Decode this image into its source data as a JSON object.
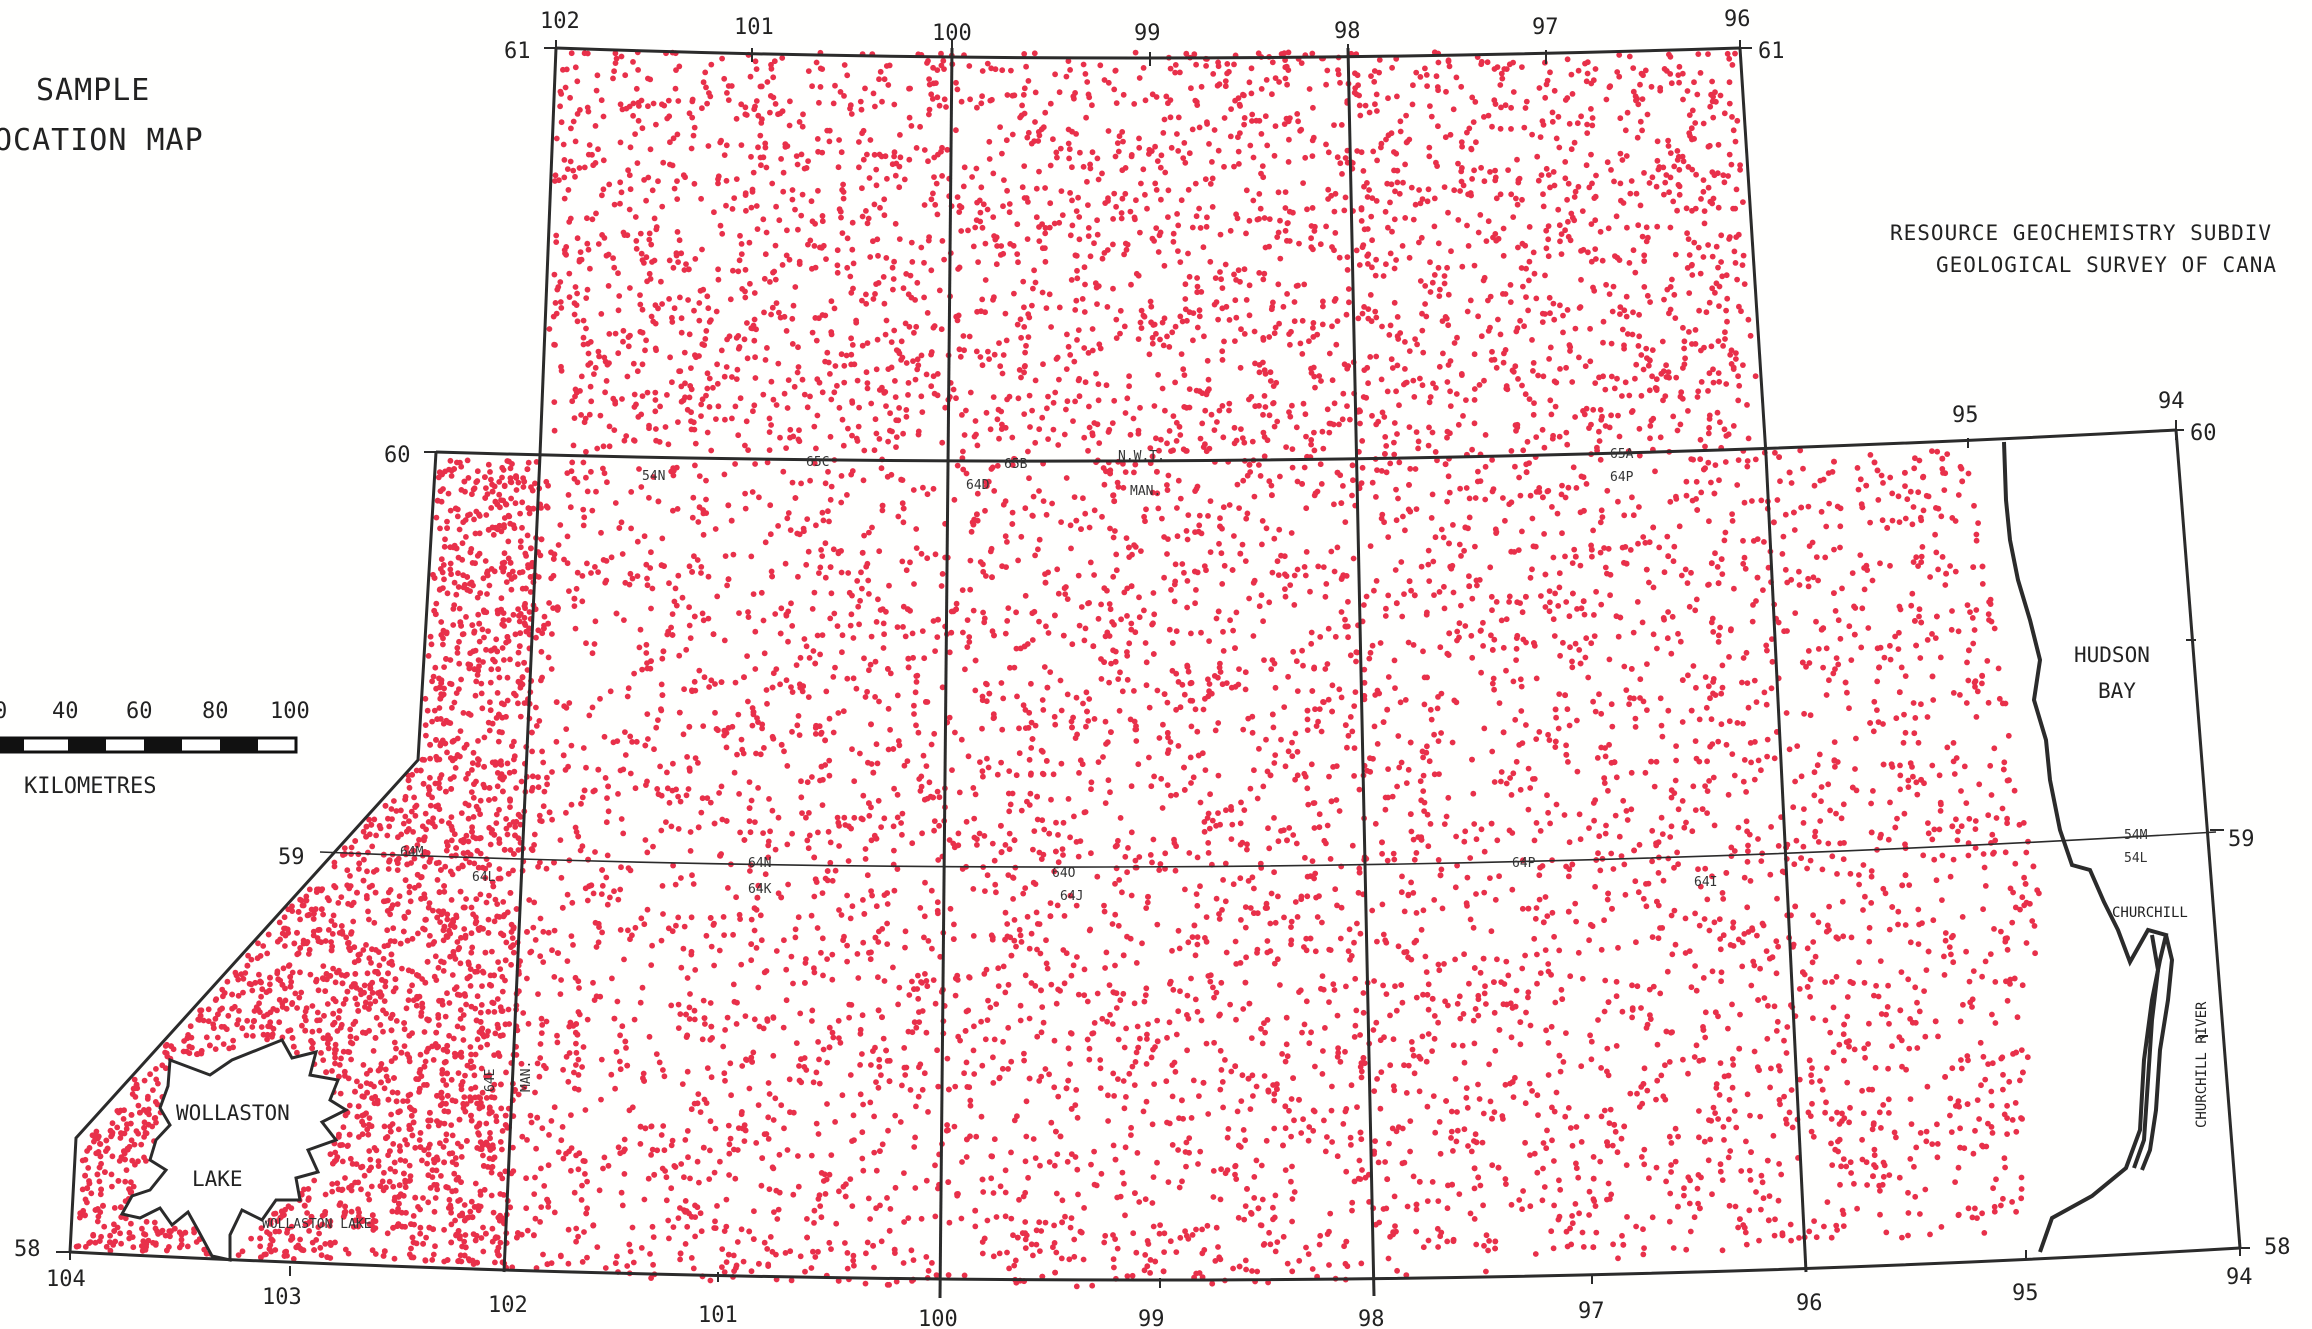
{
  "title": {
    "line1": "SAMPLE",
    "line2": "OCATION MAP"
  },
  "credit": {
    "line1": "RESOURCE GEOCHEMISTRY SUBDIV",
    "line2": "GEOLOGICAL SURVEY OF CANA"
  },
  "scale_bar": {
    "ticks": [
      "0",
      "40",
      "60",
      "80",
      "100"
    ],
    "unit": "KILOMETRES"
  },
  "places": {
    "hudson_bay_1": "HUDSON",
    "hudson_bay_2": "BAY",
    "churchill": "CHURCHILL",
    "churchill_river": "CHURCHILL RIVER",
    "wollaston_1": "WOLLASTON",
    "wollaston_2": "LAKE",
    "wollaston_small": "WOLLASTON LAKE"
  },
  "sheets": {
    "s54N_a": "54N",
    "s65C": "65C",
    "s65B": "65B",
    "nwt": "N.W.T.",
    "s64D": "64D",
    "man": "MAN.",
    "s65A": "65A",
    "s64P": "64P",
    "s64M": "64M",
    "s64L_a": "64L",
    "s54N_b": "64N",
    "s54K": "64K",
    "s64O": "64O",
    "s64J": "64J",
    "s64P_b": "64P",
    "s64I": "64I",
    "s54M": "54M",
    "s54L": "54L",
    "s64E": "64E",
    "man_v": "MAN."
  },
  "coords": {
    "top": [
      "102",
      "101",
      "100",
      "99",
      "98",
      "97",
      "96"
    ],
    "lat_61": "61",
    "lat_60": "60",
    "lat_59": "59",
    "lat_58": "58",
    "top_right_95": "95",
    "top_right_94": "94",
    "bottom": [
      "104",
      "103",
      "102",
      "101",
      "100",
      "99",
      "98",
      "97",
      "96",
      "95",
      "94"
    ]
  },
  "colors": {
    "sample_dot": "#e8304a",
    "line": "#2b2b2b",
    "background": "#fffffe"
  }
}
